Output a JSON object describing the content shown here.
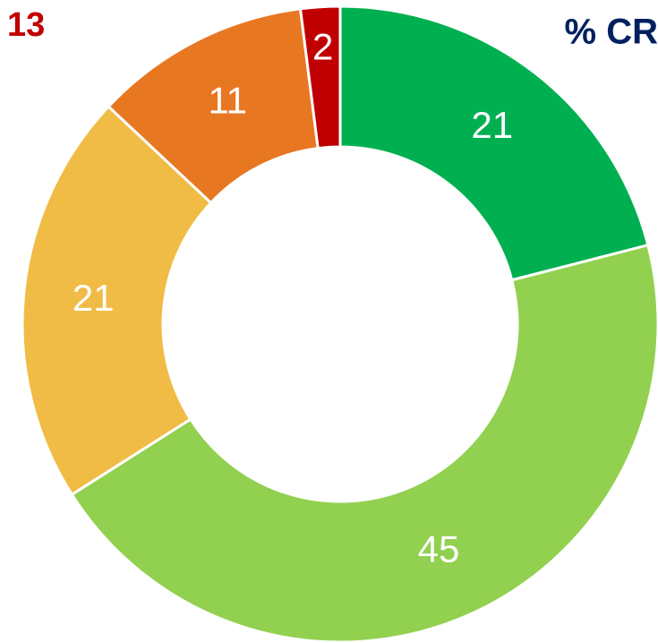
{
  "chart_data": {
    "type": "donut",
    "title": "% CR",
    "subtitle": "13",
    "values": [
      21,
      45,
      21,
      11,
      2
    ],
    "colors": [
      "#00b050",
      "#92d050",
      "#f0bc46",
      "#e87722",
      "#c00000"
    ]
  }
}
